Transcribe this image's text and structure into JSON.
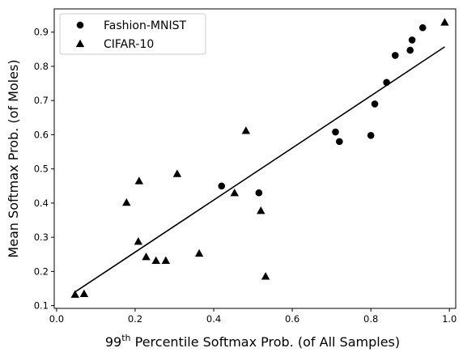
{
  "chart_data": {
    "type": "scatter",
    "xlabel": "99th Percentile Softmax Prob. (of All Samples)",
    "xlabel_parts": {
      "base": "99",
      "sup": "th",
      "rest": " Percentile Softmax Prob. (of All Samples)"
    },
    "ylabel": "Mean Softmax Prob. (of Moles)",
    "xlim": [
      0.0,
      1.0
    ],
    "ylim": [
      0.1,
      0.95
    ],
    "xticks": [
      0.0,
      0.2,
      0.4,
      0.6,
      0.8,
      1.0
    ],
    "xtick_labels": [
      "0.0",
      "0.2",
      "0.4",
      "0.6",
      "0.8",
      "1.0"
    ],
    "yticks": [
      0.1,
      0.2,
      0.3,
      0.4,
      0.5,
      0.6,
      0.7,
      0.8,
      0.9
    ],
    "ytick_labels": [
      "0.1",
      "0.2",
      "0.3",
      "0.4",
      "0.5",
      "0.6",
      "0.7",
      "0.8",
      "0.9"
    ],
    "grid": false,
    "legend_position": "top-left",
    "series": [
      {
        "name": "Fashion-MNIST",
        "marker": "circle",
        "color": "#000000",
        "points": [
          {
            "x": 0.42,
            "y": 0.45
          },
          {
            "x": 0.515,
            "y": 0.43
          },
          {
            "x": 0.71,
            "y": 0.608
          },
          {
            "x": 0.72,
            "y": 0.58
          },
          {
            "x": 0.8,
            "y": 0.598
          },
          {
            "x": 0.81,
            "y": 0.69
          },
          {
            "x": 0.84,
            "y": 0.753
          },
          {
            "x": 0.862,
            "y": 0.832
          },
          {
            "x": 0.9,
            "y": 0.847
          },
          {
            "x": 0.905,
            "y": 0.877
          },
          {
            "x": 0.932,
            "y": 0.913
          }
        ]
      },
      {
        "name": "CIFAR-10",
        "marker": "triangle",
        "color": "#000000",
        "points": [
          {
            "x": 0.047,
            "y": 0.133
          },
          {
            "x": 0.07,
            "y": 0.135
          },
          {
            "x": 0.178,
            "y": 0.402
          },
          {
            "x": 0.208,
            "y": 0.288
          },
          {
            "x": 0.21,
            "y": 0.465
          },
          {
            "x": 0.228,
            "y": 0.243
          },
          {
            "x": 0.253,
            "y": 0.232
          },
          {
            "x": 0.278,
            "y": 0.232
          },
          {
            "x": 0.307,
            "y": 0.486
          },
          {
            "x": 0.363,
            "y": 0.253
          },
          {
            "x": 0.453,
            "y": 0.43
          },
          {
            "x": 0.482,
            "y": 0.612
          },
          {
            "x": 0.52,
            "y": 0.378
          },
          {
            "x": 0.532,
            "y": 0.186
          },
          {
            "x": 0.988,
            "y": 0.929
          }
        ]
      }
    ],
    "fit_line": {
      "color": "#000000",
      "points": [
        {
          "x": 0.047,
          "y": 0.14
        },
        {
          "x": 0.988,
          "y": 0.857
        }
      ]
    }
  }
}
